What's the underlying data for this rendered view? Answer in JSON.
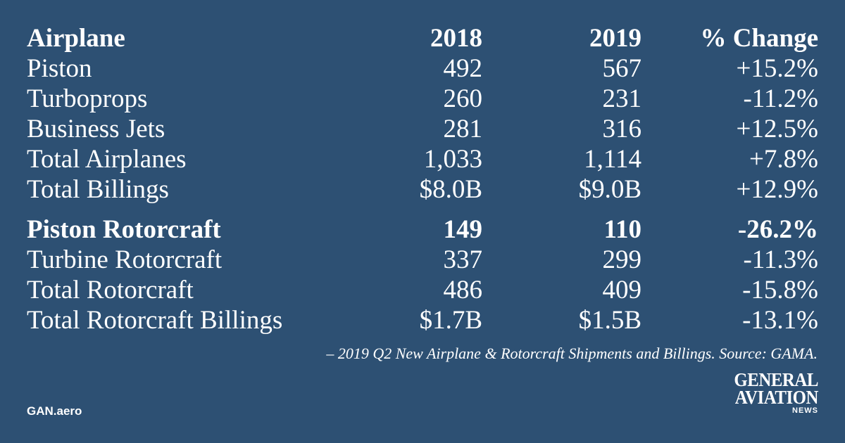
{
  "chart_data": {
    "type": "table",
    "columns": [
      "Airplane",
      "2018",
      "2019",
      "% Change"
    ],
    "rows": [
      {
        "label": "Piston",
        "y2018": "492",
        "y2019": "567",
        "change": "+15.2%"
      },
      {
        "label": "Turboprops",
        "y2018": "260",
        "y2019": "231",
        "change": "-11.2%"
      },
      {
        "label": "Business Jets",
        "y2018": "281",
        "y2019": "316",
        "change": "+12.5%"
      },
      {
        "label": "Total Airplanes",
        "y2018": "1,033",
        "y2019": "1,114",
        "change": "+7.8%"
      },
      {
        "label": "Total Billings",
        "y2018": "$8.0B",
        "y2019": "$9.0B",
        "change": "+12.9%"
      },
      {
        "label": "Piston Rotorcraft",
        "y2018": "149",
        "y2019": "110",
        "change": "-26.2%",
        "bold": true
      },
      {
        "label": "Turbine Rotorcraft",
        "y2018": "337",
        "y2019": "299",
        "change": "-11.3%"
      },
      {
        "label": "Total Rotorcraft",
        "y2018": "486",
        "y2019": "409",
        "change": "-15.8%"
      },
      {
        "label": "Total Rotorcraft Billings",
        "y2018": "$1.7B",
        "y2019": "$1.5B",
        "change": "-13.1%"
      }
    ]
  },
  "caption": "– 2019 Q2 New Airplane & Rotorcraft Shipments and Billings. Source: GAMA.",
  "footer": {
    "site": "GAN.aero",
    "logo_line1": "GENERAL",
    "logo_line2": "AVIATION",
    "logo_line3": "NEWS"
  },
  "colors": {
    "background": "#2d5073",
    "text": "#ffffff"
  }
}
